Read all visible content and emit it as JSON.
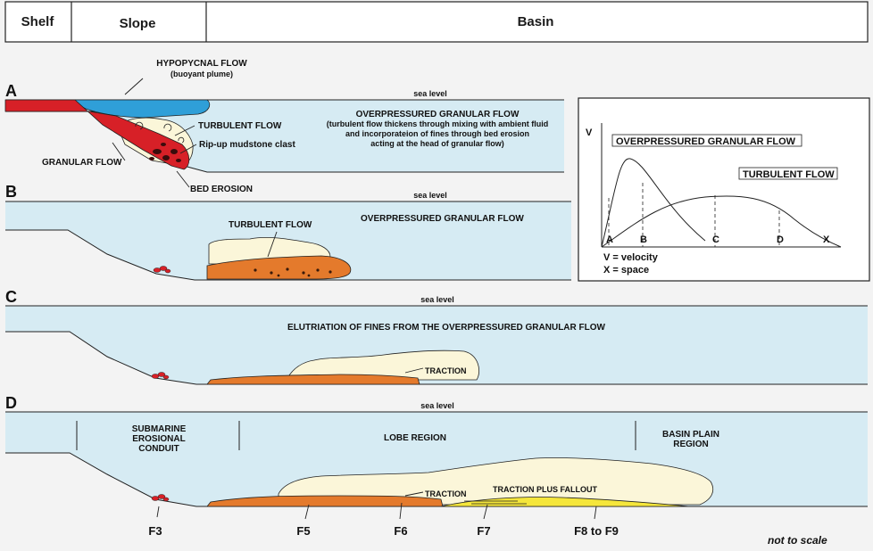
{
  "header": {
    "zones": [
      "Shelf",
      "Slope",
      "Basin"
    ]
  },
  "sea_level_label": "sea level",
  "panels": {
    "A": {
      "letter": "A",
      "hypopycnal_title": "HYPOPYCNAL FLOW",
      "hypopycnal_sub": "(buoyant plume)",
      "turbulent_flow": "TURBULENT FLOW",
      "rip_up": "Rip-up mudstone clast",
      "granular_flow": "GRANULAR FLOW",
      "bed_erosion": "BED EROSION",
      "ogf_title": "OVERPRESSURED GRANULAR FLOW",
      "ogf_desc": [
        "(turbulent flow thickens through mixing with ambient fluid",
        "and incorporateion of fines through bed erosion",
        "acting at the head of granular flow)"
      ]
    },
    "B": {
      "letter": "B",
      "turbulent_flow": "TURBULENT FLOW",
      "ogf_title": "OVERPRESSURED GRANULAR FLOW"
    },
    "C": {
      "letter": "C",
      "elutriation": "ELUTRIATION OF FINES FROM THE OVERPRESSURED GRANULAR FLOW",
      "traction": "TRACTION"
    },
    "D": {
      "letter": "D",
      "conduit": [
        "SUBMARINE",
        "EROSIONAL",
        "CONDUIT"
      ],
      "lobe": "LOBE REGION",
      "basin_plain": [
        "BASIN PLAIN",
        "REGION"
      ],
      "traction": "TRACTION",
      "traction_fallout": "TRACTION PLUS FALLOUT",
      "facies": [
        "F3",
        "F5",
        "F6",
        "F7",
        "F8 to F9"
      ]
    }
  },
  "inset": {
    "y_axis": "V",
    "x_axis": "X",
    "ogf_label": "OVERPRESSURED GRANULAR FLOW",
    "tf_label": "TURBULENT FLOW",
    "markers": [
      "A",
      "B",
      "C",
      "D"
    ],
    "legend_v": "V = velocity",
    "legend_x": "X = space"
  },
  "footer": {
    "note": "not to scale"
  },
  "colors": {
    "water": "#d6ebf3",
    "granular_red": "#d72027",
    "plume_blue": "#2f9fd8",
    "turbulent_cream": "#fbf6d9",
    "orange_deposit": "#e47a2c",
    "yellow_deposit": "#f5e63b"
  }
}
